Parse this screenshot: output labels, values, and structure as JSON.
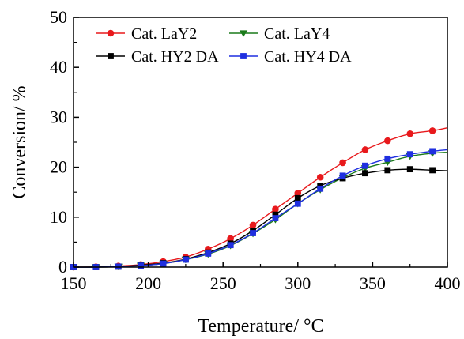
{
  "chart_data": {
    "type": "line",
    "xlabel": "Temperature/ °C",
    "ylabel": "Conversion/ %",
    "xlim": [
      150,
      400
    ],
    "ylim": [
      0,
      50
    ],
    "xticks": [
      150,
      200,
      250,
      300,
      350,
      400
    ],
    "yticks": [
      0,
      10,
      20,
      30,
      40,
      50
    ],
    "grid": false,
    "legend_position": "top-left",
    "series": [
      {
        "name": "Cat. LaY2",
        "color": "#e8191c",
        "marker": "circle",
        "x": [
          150,
          165,
          180,
          195,
          210,
          225,
          240,
          255,
          270,
          285,
          300,
          315,
          330,
          345,
          360,
          375,
          390
        ],
        "y": [
          0.0,
          0.05,
          0.2,
          0.5,
          1.1,
          2.0,
          3.6,
          5.7,
          8.4,
          11.6,
          14.8,
          18.0,
          20.9,
          23.5,
          25.3,
          26.7,
          27.3
        ],
        "fit_end": 27.9
      },
      {
        "name": "Cat. LaY4",
        "color": "#1a7a1a",
        "marker": "triangle-down",
        "x": [
          150,
          165,
          180,
          195,
          210,
          225,
          240,
          255,
          270,
          285,
          300,
          315,
          330,
          345,
          360,
          375,
          390
        ],
        "y": [
          0.0,
          0.0,
          0.1,
          0.3,
          0.7,
          1.5,
          2.6,
          4.3,
          6.7,
          9.5,
          12.7,
          15.5,
          17.9,
          19.8,
          21.0,
          22.2,
          22.8
        ],
        "fit_end": 23.0
      },
      {
        "name": "Cat. HY2 DA",
        "color": "#000000",
        "marker": "square",
        "x": [
          150,
          165,
          180,
          195,
          210,
          225,
          240,
          255,
          270,
          285,
          300,
          315,
          330,
          345,
          360,
          375,
          390
        ],
        "y": [
          0.0,
          0.0,
          0.1,
          0.4,
          0.8,
          1.6,
          2.9,
          4.7,
          7.3,
          10.5,
          13.8,
          16.3,
          17.8,
          18.8,
          19.4,
          19.6,
          19.4
        ],
        "fit_end": 19.3
      },
      {
        "name": "Cat. HY4 DA",
        "color": "#1f2fe0",
        "marker": "square",
        "x": [
          150,
          165,
          180,
          195,
          210,
          225,
          240,
          255,
          270,
          285,
          300,
          315,
          330,
          345,
          360,
          375,
          390
        ],
        "y": [
          0.0,
          0.0,
          0.1,
          0.3,
          0.7,
          1.5,
          2.7,
          4.4,
          6.8,
          9.8,
          12.7,
          15.7,
          18.3,
          20.3,
          21.7,
          22.6,
          23.2
        ],
        "fit_end": 23.5
      }
    ]
  }
}
